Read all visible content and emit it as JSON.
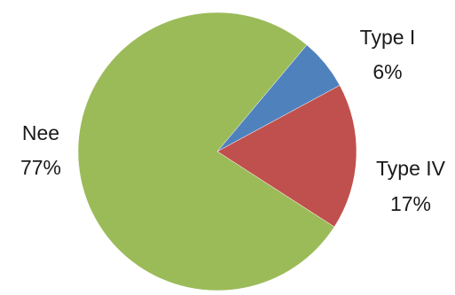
{
  "chart_data": {
    "type": "pie",
    "title": "",
    "slices": [
      {
        "label": "Type I",
        "value": 6,
        "value_label": "6%",
        "color": "#4F81BD"
      },
      {
        "label": "Type IV",
        "value": 17,
        "value_label": "17%",
        "color": "#C0504D"
      },
      {
        "label": "Nee",
        "value": 77,
        "value_label": "77%",
        "color": "#9BBB59"
      }
    ],
    "legend": "none",
    "data_labels": "outside"
  }
}
